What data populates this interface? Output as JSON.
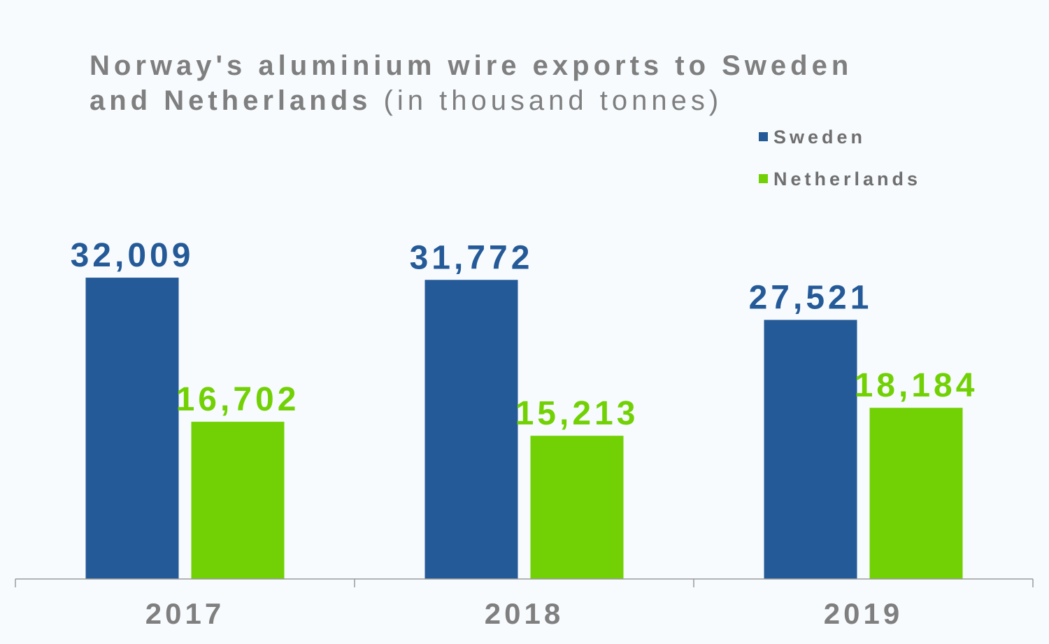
{
  "chart_data": {
    "type": "bar",
    "title_bold": "Norway's aluminium wire exports to Sweden and Netherlands",
    "title_light": "(in thousand tonnes)",
    "categories": [
      "2017",
      "2018",
      "2019"
    ],
    "series": [
      {
        "name": "Sweden",
        "values": [
          32009,
          31772,
          27521
        ],
        "labels": [
          "32,009",
          "31,772",
          "27,521"
        ],
        "color": "#255a98"
      },
      {
        "name": "Netherlands",
        "values": [
          16702,
          15213,
          18184
        ],
        "labels": [
          "16,702",
          "15,213",
          "18,184"
        ],
        "color": "#72d104"
      }
    ],
    "ylim": [
      0,
      33500
    ],
    "grid": false,
    "legend_position": "top-right",
    "axis_color": "#9a9a9a",
    "title_color": "#7f7f7f",
    "category_label_color": "#7f7f7f"
  }
}
